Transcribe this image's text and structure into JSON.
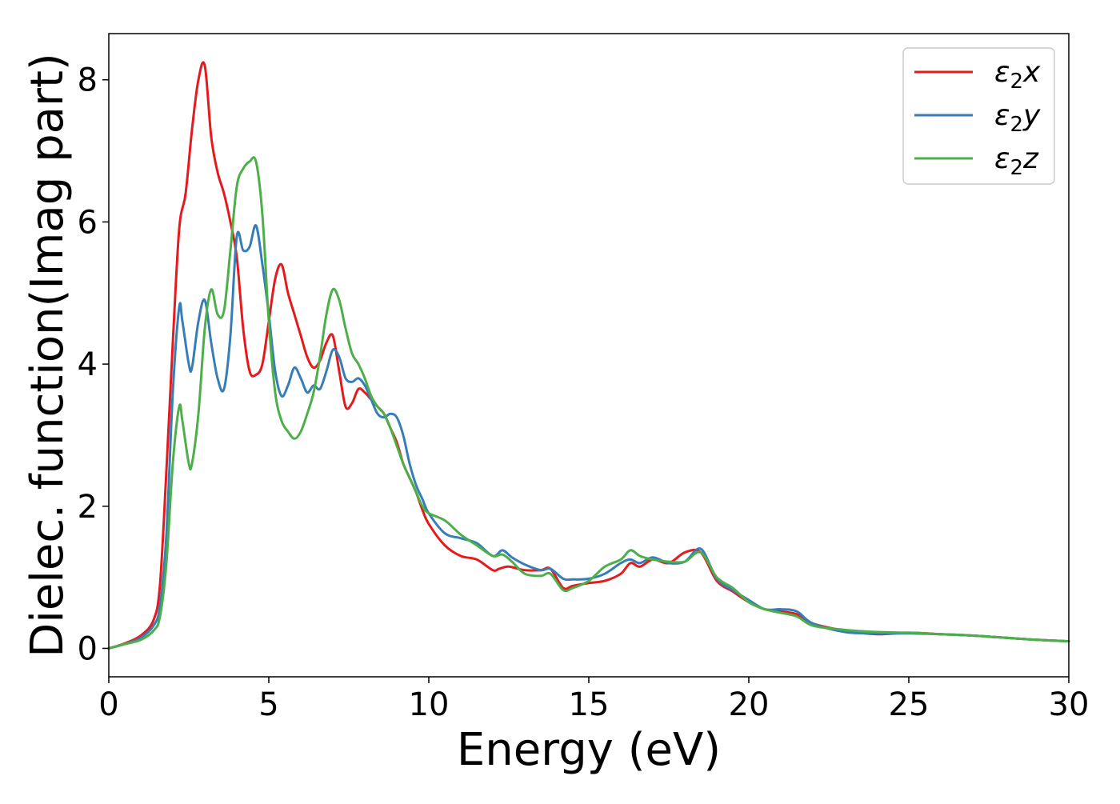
{
  "chart_data": {
    "type": "line",
    "title": "",
    "xlabel": "Energy (eV)",
    "ylabel": "Dielec. function(Imag part)",
    "xlim": [
      0,
      30
    ],
    "ylim": [
      -0.4,
      8.65
    ],
    "xticks": [
      0,
      5,
      10,
      15,
      20,
      25,
      30
    ],
    "xtick_labels": [
      "0",
      "5",
      "10",
      "15",
      "20",
      "25",
      "30"
    ],
    "yticks": [
      0,
      2,
      4,
      6,
      8
    ],
    "ytick_labels": [
      "0",
      "2",
      "4",
      "6",
      "8"
    ],
    "grid": false,
    "legend_position": "top-right",
    "series": [
      {
        "name": "ε₂x",
        "legend": {
          "base": "ε",
          "sub": "2",
          "var": "x"
        },
        "color": "#e41a1c",
        "x": [
          0,
          0.5,
          1.0,
          1.4,
          1.6,
          1.8,
          2.0,
          2.2,
          2.4,
          2.6,
          2.8,
          3.0,
          3.2,
          3.4,
          3.6,
          3.8,
          4.0,
          4.2,
          4.4,
          4.6,
          4.8,
          5.0,
          5.2,
          5.4,
          5.6,
          5.8,
          6.0,
          6.2,
          6.4,
          6.6,
          6.8,
          7.0,
          7.2,
          7.4,
          7.6,
          7.8,
          8.0,
          8.2,
          8.4,
          8.6,
          8.8,
          9.0,
          9.2,
          9.4,
          9.6,
          9.8,
          10.0,
          10.5,
          11.0,
          11.5,
          12.0,
          12.2,
          12.5,
          13.0,
          13.5,
          13.8,
          14.2,
          14.5,
          15.0,
          15.5,
          16.0,
          16.3,
          16.6,
          17.0,
          17.5,
          18.0,
          18.5,
          19.0,
          19.5,
          20.0,
          20.5,
          21.0,
          21.5,
          22.0,
          23.0,
          24.0,
          25.0,
          26.0,
          27.0,
          28.0,
          29.0,
          30.0
        ],
        "y": [
          0.0,
          0.07,
          0.18,
          0.4,
          0.9,
          2.5,
          4.3,
          5.9,
          6.4,
          7.3,
          8.0,
          8.2,
          7.2,
          6.7,
          6.4,
          6.0,
          5.5,
          4.5,
          3.9,
          3.85,
          4.0,
          4.6,
          5.2,
          5.4,
          5.0,
          4.7,
          4.4,
          4.1,
          3.95,
          4.05,
          4.3,
          4.4,
          3.9,
          3.4,
          3.45,
          3.65,
          3.6,
          3.5,
          3.4,
          3.3,
          3.1,
          2.9,
          2.6,
          2.4,
          2.2,
          1.95,
          1.75,
          1.45,
          1.3,
          1.25,
          1.1,
          1.12,
          1.15,
          1.1,
          1.1,
          1.12,
          0.85,
          0.88,
          0.92,
          0.95,
          1.05,
          1.2,
          1.15,
          1.25,
          1.2,
          1.35,
          1.35,
          0.95,
          0.8,
          0.65,
          0.55,
          0.52,
          0.48,
          0.35,
          0.25,
          0.2,
          0.22,
          0.2,
          0.18,
          0.15,
          0.12,
          0.1
        ]
      },
      {
        "name": "ε₂y",
        "legend": {
          "base": "ε",
          "sub": "2",
          "var": "y"
        },
        "color": "#377eb8",
        "x": [
          0,
          0.5,
          1.0,
          1.4,
          1.6,
          1.8,
          2.0,
          2.2,
          2.3,
          2.5,
          2.6,
          2.8,
          3.0,
          3.2,
          3.4,
          3.6,
          3.8,
          4.0,
          4.2,
          4.4,
          4.6,
          4.8,
          5.0,
          5.2,
          5.4,
          5.6,
          5.8,
          6.0,
          6.2,
          6.4,
          6.6,
          6.8,
          7.0,
          7.2,
          7.4,
          7.6,
          7.8,
          8.0,
          8.2,
          8.4,
          8.6,
          8.8,
          9.0,
          9.2,
          9.4,
          9.6,
          9.8,
          10.0,
          10.5,
          11.0,
          11.5,
          12.0,
          12.3,
          12.6,
          13.0,
          13.5,
          13.8,
          14.2,
          14.5,
          15.0,
          15.5,
          16.0,
          16.3,
          16.6,
          17.0,
          17.5,
          18.0,
          18.5,
          19.0,
          19.5,
          20.0,
          20.5,
          21.0,
          21.5,
          22.0,
          23.0,
          24.0,
          25.0,
          26.0,
          27.0,
          28.0,
          29.0,
          30.0
        ],
        "y": [
          0.0,
          0.06,
          0.15,
          0.32,
          0.6,
          1.6,
          3.6,
          4.8,
          4.6,
          4.0,
          3.95,
          4.6,
          4.9,
          4.3,
          3.8,
          3.65,
          4.4,
          5.8,
          5.6,
          5.65,
          5.95,
          5.4,
          4.7,
          3.9,
          3.55,
          3.7,
          3.95,
          3.8,
          3.6,
          3.7,
          3.65,
          3.9,
          4.2,
          4.1,
          3.8,
          3.75,
          3.8,
          3.7,
          3.5,
          3.3,
          3.25,
          3.3,
          3.25,
          3.0,
          2.6,
          2.3,
          2.1,
          1.9,
          1.62,
          1.55,
          1.48,
          1.3,
          1.38,
          1.28,
          1.18,
          1.1,
          1.12,
          0.98,
          0.97,
          0.98,
          1.05,
          1.2,
          1.25,
          1.2,
          1.28,
          1.2,
          1.22,
          1.4,
          0.98,
          0.82,
          0.68,
          0.55,
          0.55,
          0.52,
          0.35,
          0.23,
          0.21,
          0.21,
          0.2,
          0.18,
          0.15,
          0.12,
          0.1
        ]
      },
      {
        "name": "ε₂z",
        "legend": {
          "base": "ε",
          "sub": "2",
          "var": "z"
        },
        "color": "#4daf4a",
        "x": [
          0,
          0.5,
          1.0,
          1.4,
          1.6,
          1.8,
          2.0,
          2.2,
          2.3,
          2.5,
          2.6,
          2.8,
          3.0,
          3.2,
          3.4,
          3.6,
          3.8,
          4.0,
          4.2,
          4.4,
          4.6,
          4.8,
          5.0,
          5.2,
          5.4,
          5.6,
          5.8,
          6.0,
          6.2,
          6.4,
          6.6,
          6.8,
          7.0,
          7.2,
          7.4,
          7.6,
          7.8,
          8.0,
          8.2,
          8.4,
          8.6,
          8.8,
          9.0,
          9.2,
          9.4,
          9.6,
          9.8,
          10.0,
          10.5,
          11.0,
          11.5,
          12.0,
          12.3,
          12.6,
          13.0,
          13.5,
          13.8,
          14.2,
          14.5,
          15.0,
          15.5,
          16.0,
          16.3,
          16.6,
          17.0,
          17.5,
          18.0,
          18.5,
          19.0,
          19.5,
          20.0,
          20.5,
          21.0,
          21.5,
          22.0,
          23.0,
          24.0,
          25.0,
          26.0,
          27.0,
          28.0,
          29.0,
          30.0
        ],
        "y": [
          0.0,
          0.06,
          0.12,
          0.25,
          0.45,
          1.2,
          2.6,
          3.4,
          3.2,
          2.6,
          2.6,
          3.3,
          4.5,
          5.05,
          4.7,
          4.75,
          5.6,
          6.5,
          6.75,
          6.85,
          6.85,
          6.1,
          4.6,
          3.6,
          3.2,
          3.05,
          2.95,
          3.05,
          3.3,
          3.6,
          4.1,
          4.7,
          5.05,
          4.9,
          4.5,
          4.15,
          4.0,
          3.8,
          3.55,
          3.4,
          3.3,
          3.1,
          2.85,
          2.6,
          2.4,
          2.2,
          2.0,
          1.9,
          1.8,
          1.6,
          1.45,
          1.3,
          1.32,
          1.22,
          1.05,
          1.02,
          1.05,
          0.82,
          0.85,
          0.95,
          1.15,
          1.25,
          1.38,
          1.3,
          1.25,
          1.22,
          1.22,
          1.35,
          1.0,
          0.85,
          0.65,
          0.55,
          0.5,
          0.45,
          0.32,
          0.26,
          0.23,
          0.22,
          0.2,
          0.18,
          0.15,
          0.12,
          0.1
        ]
      }
    ]
  }
}
